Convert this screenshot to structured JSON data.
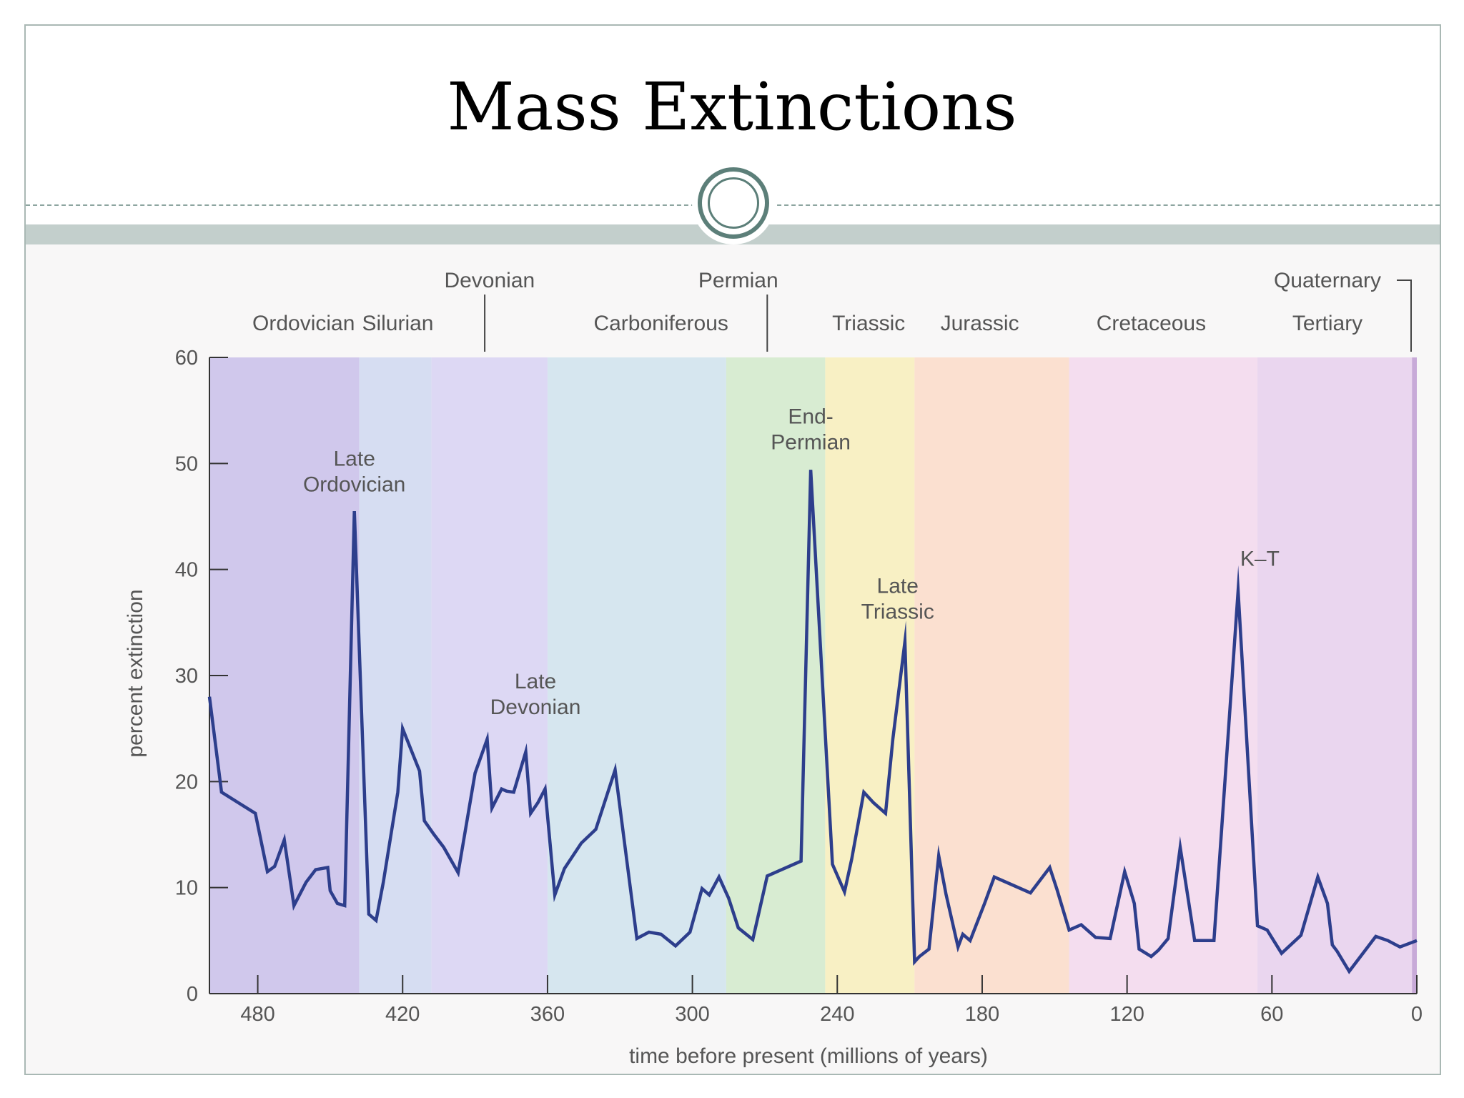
{
  "slide": {
    "title": "Mass Extinctions"
  },
  "chart_data": {
    "type": "line",
    "title": "",
    "xlabel": "time before present (millions of years)",
    "ylabel": "percent extinction",
    "xlim": [
      500,
      0
    ],
    "ylim": [
      0,
      60
    ],
    "x_ticks": [
      480,
      420,
      360,
      300,
      240,
      180,
      120,
      60,
      0
    ],
    "y_ticks": [
      0,
      10,
      20,
      30,
      40,
      50,
      60
    ],
    "grid": false,
    "line_color": "#2d3e8c",
    "series": [
      {
        "x": [
          500,
          495,
          488,
          481,
          476,
          473,
          469,
          465,
          460,
          456,
          451,
          450,
          447,
          444,
          440,
          434,
          431,
          428,
          422,
          420,
          413,
          411,
          407,
          403,
          399,
          397,
          390,
          385,
          383,
          379,
          377,
          374,
          369,
          367,
          364,
          361,
          357,
          353,
          346,
          340,
          332,
          323,
          318,
          313,
          307,
          301,
          296,
          293,
          289,
          285,
          281,
          275,
          269,
          264,
          255,
          251,
          242,
          237,
          234,
          229,
          225,
          220,
          217,
          212,
          208,
          206,
          202,
          198,
          195,
          190,
          188,
          185,
          179,
          175,
          160,
          152,
          149,
          144,
          139,
          133,
          127,
          121,
          117,
          115,
          110,
          107,
          103,
          98,
          92,
          90,
          84,
          74,
          66,
          62,
          56,
          48,
          41,
          37,
          35,
          33,
          28,
          23,
          17,
          12,
          7,
          0
        ],
        "y": [
          28,
          19,
          18,
          17,
          11.5,
          12,
          14.5,
          8.3,
          10.5,
          11.7,
          11.9,
          9.7,
          8.5,
          8.3,
          45.5,
          7.5,
          6.9,
          10.5,
          19,
          25,
          21,
          16.3,
          15,
          13.8,
          12.2,
          11.4,
          20.8,
          24,
          17.5,
          19.3,
          19.1,
          19,
          22.8,
          17,
          18,
          19.3,
          9.3,
          11.8,
          14.2,
          15.5,
          21.1,
          5.2,
          5.8,
          5.6,
          4.5,
          5.8,
          9.9,
          9.3,
          11,
          9,
          6.2,
          5.1,
          11.1,
          11.6,
          12.5,
          49.4,
          12.2,
          9.6,
          12.7,
          19,
          18,
          17,
          24,
          33.2,
          3,
          3.5,
          4.2,
          13,
          9.4,
          4.4,
          5.6,
          5,
          8.5,
          11,
          9.5,
          11.9,
          9.8,
          6,
          6.5,
          5.3,
          5.2,
          11.5,
          8.5,
          4.2,
          3.5,
          4.1,
          5.2,
          13.8,
          5,
          5,
          5,
          38,
          6.4,
          6,
          3.8,
          5.5,
          11,
          8.5,
          4.6,
          4,
          2.1,
          3.6,
          5.4,
          5,
          4.4,
          5
        ]
      }
    ],
    "annotations": [
      {
        "text": [
          "Late",
          "Ordovician"
        ],
        "x": 440,
        "y": 46
      },
      {
        "text": [
          "Late",
          "Devonian"
        ],
        "x": 365,
        "y": 25
      },
      {
        "text": [
          "End-",
          "Permian"
        ],
        "x": 251,
        "y": 50
      },
      {
        "text": [
          "Late",
          "Triassic"
        ],
        "x": 215,
        "y": 34
      },
      {
        "text": [
          "K–T"
        ],
        "x": 65,
        "y": 39
      }
    ],
    "periods": [
      {
        "name": "Ordovician",
        "start": 500,
        "end": 438,
        "color": "#d0c8ec"
      },
      {
        "name": "Silurian",
        "start": 438,
        "end": 408,
        "color": "#d6ddf2"
      },
      {
        "name": "Devonian",
        "start": 408,
        "end": 360,
        "color": "#ddd8f4"
      },
      {
        "name": "Carboniferous",
        "start": 360,
        "end": 286,
        "color": "#d6e6ef"
      },
      {
        "name": "Permian",
        "start": 286,
        "end": 245,
        "color": "#d8ecd2"
      },
      {
        "name": "Triassic",
        "start": 245,
        "end": 208,
        "color": "#f8f0c4"
      },
      {
        "name": "Jurassic",
        "start": 208,
        "end": 144,
        "color": "#fbe0d0"
      },
      {
        "name": "Cretaceous",
        "start": 144,
        "end": 66,
        "color": "#f4ddef"
      },
      {
        "name": "Tertiary",
        "start": 66,
        "end": 2,
        "color": "#ead6ef"
      },
      {
        "name": "Quaternary",
        "start": 2,
        "end": 0,
        "color": "#c8aad8"
      }
    ],
    "period_labels": [
      {
        "text": "Ordovician",
        "x": 461,
        "row": 2
      },
      {
        "text": "Silurian",
        "x": 422,
        "row": 2
      },
      {
        "text": "Devonian",
        "x": 384,
        "row": 1
      },
      {
        "text": "Carboniferous",
        "x": 313,
        "row": 2
      },
      {
        "text": "Permian",
        "x": 281,
        "row": 1
      },
      {
        "text": "Triassic",
        "x": 227,
        "row": 2
      },
      {
        "text": "Jurassic",
        "x": 181,
        "row": 2
      },
      {
        "text": "Cretaceous",
        "x": 110,
        "row": 2
      },
      {
        "text": "Tertiary",
        "x": 37,
        "row": 2
      },
      {
        "text": "Quaternary",
        "x": 37,
        "row": 1
      }
    ],
    "period_dividers": [
      386,
      269
    ]
  }
}
